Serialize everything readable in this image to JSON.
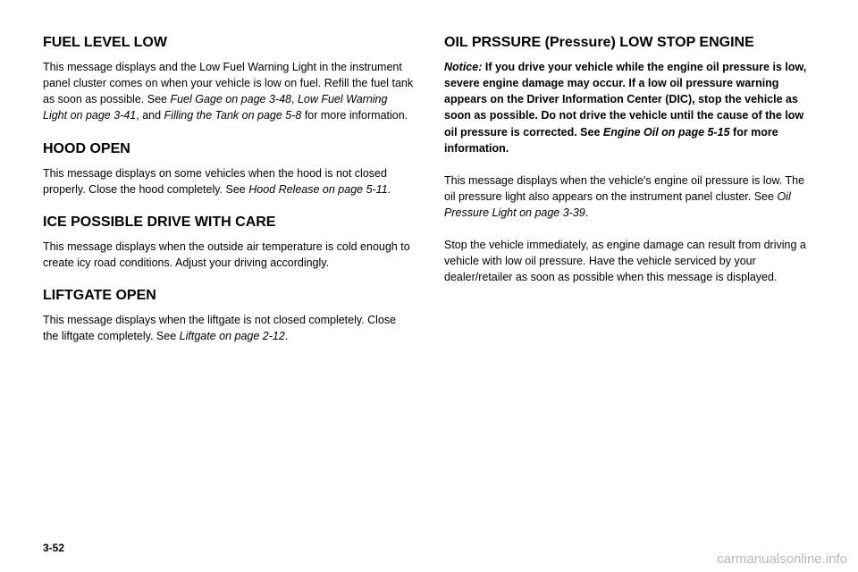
{
  "left": {
    "h1": "FUEL LEVEL LOW",
    "p1a": "This message displays and the Low Fuel Warning Light in the instrument panel cluster comes on when your vehicle is low on fuel. Refill the fuel tank as soon as possible. See ",
    "p1b": "Fuel Gage on page 3-48",
    "p1c": ", ",
    "p1d": "Low Fuel Warning Light on page 3-41",
    "p1e": ", and ",
    "p1f": "Filling the Tank on page 5-8",
    "p1g": " for more information.",
    "h2": "HOOD OPEN",
    "p2a": "This message displays on some vehicles when the hood is not closed properly. Close the hood completely. See ",
    "p2b": "Hood Release on page 5-11",
    "p2c": ".",
    "h3": "ICE POSSIBLE DRIVE WITH CARE",
    "p3": "This message displays when the outside air temperature is cold enough to create icy road conditions. Adjust your driving accordingly.",
    "h4": "LIFTGATE OPEN",
    "p4a": "This message displays when the liftgate is not closed completely. Close the liftgate completely. See ",
    "p4b": "Liftgate on page 2-12",
    "p4c": "."
  },
  "right": {
    "h1": "OIL PRSSURE (Pressure) LOW STOP ENGINE",
    "p1a": "Notice:",
    "p1b": " If you drive your vehicle while the engine oil pressure is low, severe engine damage may occur. If a low oil pressure warning appears on the Driver Information Center (DIC), stop the vehicle as soon as possible. Do not drive the vehicle until the cause of the low oil pressure is corrected. See ",
    "p1c": "Engine Oil on page 5-15",
    "p1d": " for more information.",
    "p2a": "This message displays when the vehicle's engine oil pressure is low. The oil pressure light also appears on the instrument panel cluster. See ",
    "p2b": "Oil Pressure Light on page 3-39",
    "p2c": ".",
    "p3": "Stop the vehicle immediately, as engine damage can result from driving a vehicle with low oil pressure. Have the vehicle serviced by your dealer/retailer as soon as possible when this message is displayed."
  },
  "pagenum": "3-52",
  "watermark": "carmanualsonline.info"
}
